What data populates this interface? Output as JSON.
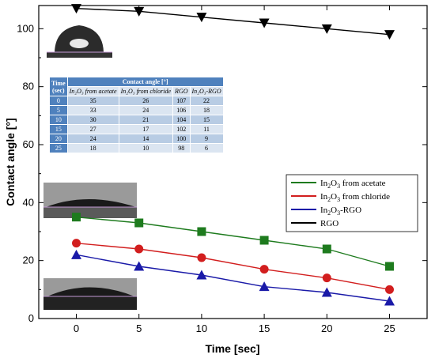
{
  "chart_data": {
    "type": "line",
    "xlabel": "Time [sec]",
    "ylabel": "Contact angle [°]",
    "x": [
      0,
      5,
      10,
      15,
      20,
      25
    ],
    "xlim": [
      -3,
      28
    ],
    "ylim": [
      0,
      108
    ],
    "xticks": [
      "0",
      "5",
      "10",
      "15",
      "20",
      "25"
    ],
    "yticks": [
      "0",
      "20",
      "40",
      "60",
      "80",
      "100"
    ],
    "legend_position": "center-right",
    "series": [
      {
        "name": "In2O3 from acetate",
        "label_main": "In",
        "label_sub": "2",
        "label_mid": "O",
        "label_sub2": "3",
        "label_rest": " from acetate",
        "values": [
          35,
          33,
          30,
          27,
          24,
          18
        ],
        "color": "#1e7b1e",
        "marker": "square"
      },
      {
        "name": "In2O3 from chloride",
        "label_main": "In",
        "label_sub": "2",
        "label_mid": "O",
        "label_sub2": "3",
        "label_rest": " from chloride",
        "values": [
          26,
          24,
          21,
          17,
          14,
          10
        ],
        "color": "#d21e1e",
        "marker": "circle"
      },
      {
        "name": "In2O3-RGO",
        "label_main": "In",
        "label_sub": "2",
        "label_mid": "O",
        "label_sub2": "3",
        "label_rest": "-RGO",
        "values": [
          22,
          18,
          15,
          11,
          9,
          6
        ],
        "color": "#1a1aa8",
        "marker": "triangle-up"
      },
      {
        "name": "RGO",
        "label_main": "RGO",
        "label_sub": "",
        "label_mid": "",
        "label_sub2": "",
        "label_rest": "",
        "values": [
          107,
          106,
          104,
          102,
          100,
          98
        ],
        "color": "#000000",
        "marker": "triangle-down"
      }
    ],
    "table": {
      "col_time": "Time",
      "col_time_unit": "(sec)",
      "group_header": "Contact angle [°]",
      "sub_headers": [
        "In₂O₃ from acetate",
        "In₂O₃ from chloride",
        "RGO",
        "In₂O₃-RGO"
      ],
      "rows": [
        [
          "0",
          "35",
          "26",
          "107",
          "22"
        ],
        [
          "5",
          "33",
          "24",
          "106",
          "18"
        ],
        [
          "10",
          "30",
          "21",
          "104",
          "15"
        ],
        [
          "15",
          "27",
          "17",
          "102",
          "11"
        ],
        [
          "20",
          "24",
          "14",
          "100",
          "9"
        ],
        [
          "25",
          "18",
          "10",
          "98",
          "6"
        ]
      ]
    }
  }
}
